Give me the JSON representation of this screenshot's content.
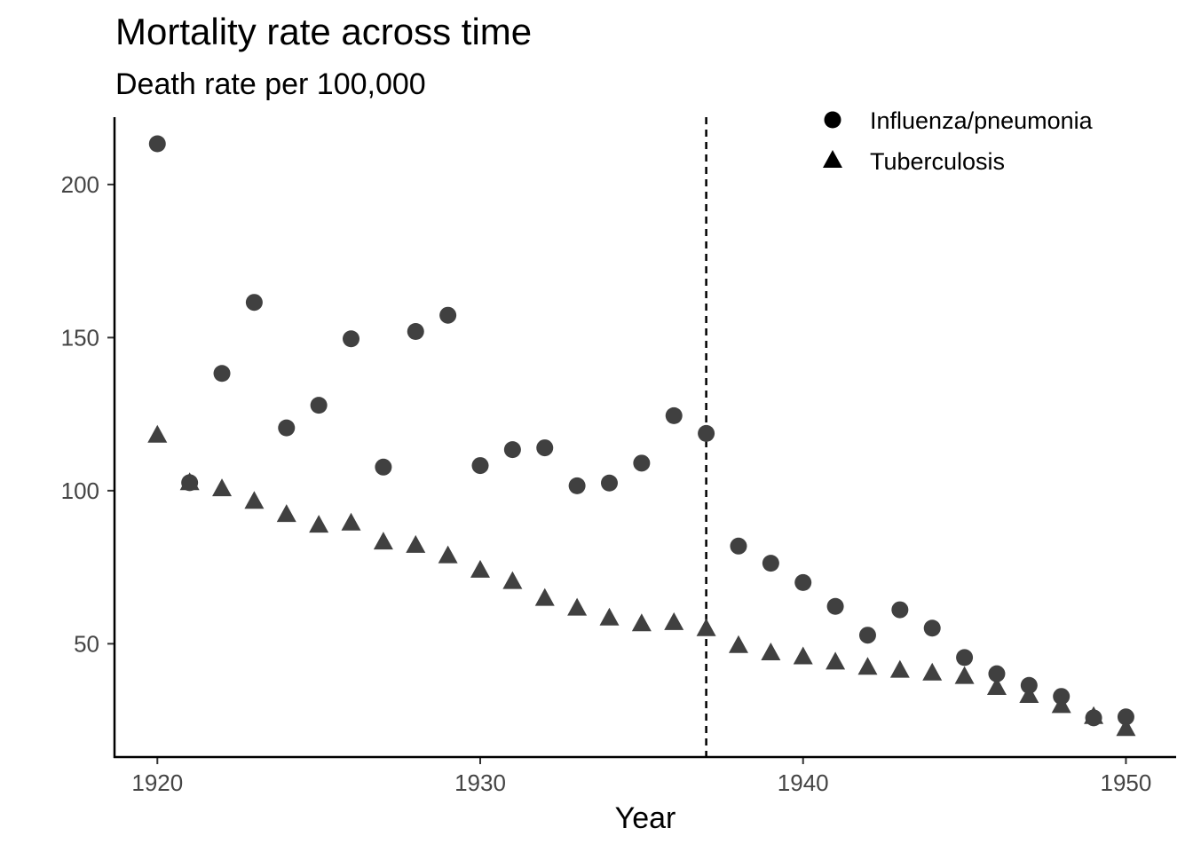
{
  "chart_data": {
    "type": "scatter",
    "title": "Mortality rate across time",
    "subtitle": "Death rate per 100,000",
    "xlabel": "Year",
    "ylabel": "",
    "xlim": [
      1918.7,
      1951.5
    ],
    "ylim": [
      13,
      222
    ],
    "xticks": [
      1920,
      1930,
      1940,
      1950
    ],
    "yticks": [
      50,
      100,
      150,
      200
    ],
    "grid": false,
    "legend_position": "top-right",
    "reference_line": {
      "x": 1937,
      "style": "dashed"
    },
    "point_color": "#404040",
    "series": [
      {
        "name": "Influenza/pneumonia",
        "shape": "circle",
        "x": [
          1920,
          1921,
          1922,
          1923,
          1924,
          1925,
          1926,
          1927,
          1928,
          1929,
          1930,
          1931,
          1932,
          1933,
          1934,
          1935,
          1936,
          1937,
          1938,
          1939,
          1940,
          1941,
          1942,
          1943,
          1944,
          1945,
          1946,
          1947,
          1948,
          1949,
          1950
        ],
        "y": [
          213.3,
          102.6,
          138.3,
          161.5,
          120.5,
          127.9,
          149.6,
          107.7,
          152.0,
          157.3,
          108.2,
          113.4,
          114.0,
          101.6,
          102.5,
          109.0,
          124.5,
          118.7,
          81.9,
          76.3,
          70.0,
          62.2,
          52.8,
          61.1,
          55.1,
          45.5,
          40.2,
          36.4,
          32.8,
          25.8,
          26.1
        ]
      },
      {
        "name": "Tuberculosis",
        "shape": "triangle",
        "x": [
          1920,
          1921,
          1922,
          1923,
          1924,
          1925,
          1926,
          1927,
          1928,
          1929,
          1930,
          1931,
          1932,
          1933,
          1934,
          1935,
          1936,
          1937,
          1938,
          1939,
          1940,
          1941,
          1942,
          1943,
          1944,
          1945,
          1946,
          1947,
          1948,
          1949,
          1950
        ],
        "y": [
          118.3,
          102.8,
          100.8,
          96.7,
          92.4,
          88.9,
          89.6,
          83.4,
          82.3,
          78.9,
          74.2,
          70.5,
          65.0,
          61.8,
          58.6,
          56.7,
          57.1,
          55.1,
          49.6,
          47.2,
          45.9,
          44.2,
          42.5,
          41.5,
          40.6,
          39.5,
          35.9,
          33.3,
          30.0,
          26.4,
          22.5
        ]
      }
    ]
  }
}
